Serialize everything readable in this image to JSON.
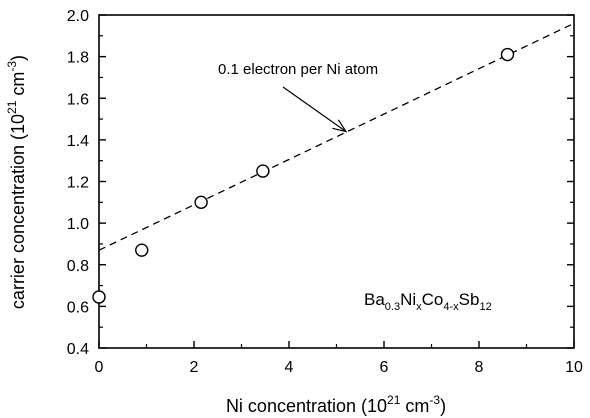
{
  "chart_data": {
    "type": "scatter",
    "xlabel": "Ni concentration (10",
    "xlabel_sup": "21",
    "xlabel_mid": " cm",
    "xlabel_sup2": "-3",
    "xlabel_end": ")",
    "ylabel": "carrier concentration (10",
    "ylabel_sup": "21",
    "ylabel_mid": " cm",
    "ylabel_sup2": "-3",
    "ylabel_end": ")",
    "xlim": [
      0,
      10
    ],
    "ylim": [
      0.4,
      2.0
    ],
    "xticks": [
      0,
      2,
      4,
      6,
      8,
      10
    ],
    "yticks": [
      0.4,
      0.6,
      0.8,
      1.0,
      1.2,
      1.4,
      1.6,
      1.8,
      2.0
    ],
    "xtick_labels": [
      "0",
      "2",
      "4",
      "6",
      "8",
      "10"
    ],
    "ytick_labels": [
      "0.4",
      "0.6",
      "0.8",
      "1.0",
      "1.2",
      "1.4",
      "1.6",
      "1.8",
      "2.0"
    ],
    "grid": false,
    "series": [
      {
        "marker": "open-circle",
        "x": [
          0.0,
          0.9,
          2.15,
          3.45,
          8.6
        ],
        "y": [
          0.645,
          0.87,
          1.1,
          1.25,
          1.81
        ]
      }
    ],
    "fit_line": {
      "style": "dashed",
      "x": [
        0,
        10
      ],
      "y": [
        0.87,
        1.96
      ]
    },
    "annotation": {
      "text": "0.1 electron per Ni atom",
      "arrow_to": [
        5.2,
        1.44
      ]
    },
    "formula": {
      "p1": "Ba",
      "s1": "0.3",
      "p2": "Ni",
      "s2": "x",
      "p3": "Co",
      "s3": "4-x",
      "p4": "Sb",
      "s4": "12"
    }
  }
}
